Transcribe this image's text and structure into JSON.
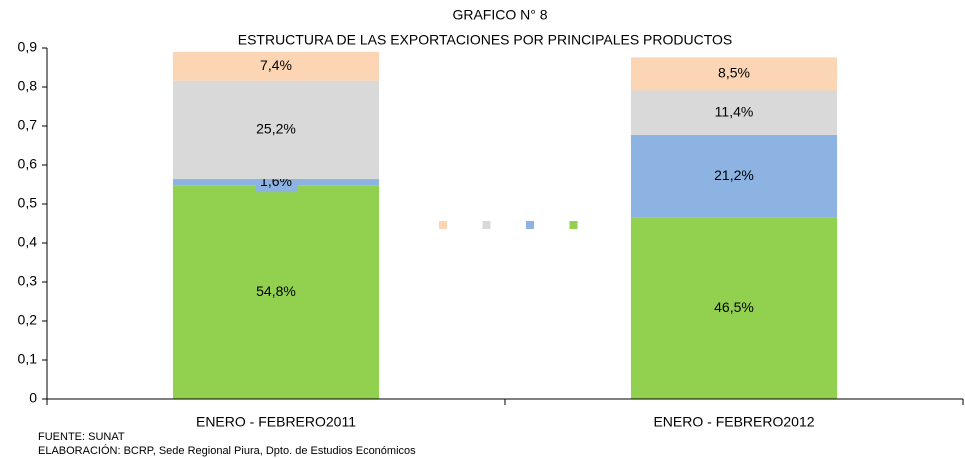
{
  "chart_data": {
    "type": "stacked-bar",
    "title": "GRAFICO N° 8",
    "subtitle": "ESTRUCTURA DE LAS EXPORTACIONES POR PRINCIPALES PRODUCTOS",
    "categories": [
      "ENERO - FEBRERO2011",
      "ENERO - FEBRERO2012"
    ],
    "series": [
      {
        "color": "#92d050",
        "values": [
          0.548,
          0.465
        ],
        "value_labels": [
          "54,8%",
          "46,5%"
        ]
      },
      {
        "color": "#8db3e2",
        "values": [
          0.016,
          0.212
        ],
        "value_labels": [
          "1,6%",
          "21,2%"
        ]
      },
      {
        "color": "#d9d9d9",
        "values": [
          0.252,
          0.114
        ],
        "value_labels": [
          "25,2%",
          "11,4%"
        ]
      },
      {
        "color": "#fcd5b4",
        "values": [
          0.074,
          0.085
        ],
        "value_labels": [
          "7,4%",
          "8,5%"
        ]
      }
    ],
    "ylim": [
      0,
      0.9
    ],
    "yticks": [
      0,
      {
        "value": 0.1,
        "label": "0,1"
      },
      {
        "value": 0.2,
        "label": "0,2"
      },
      {
        "value": 0.3,
        "label": "0,3"
      },
      {
        "value": 0.4,
        "label": "0,4"
      },
      {
        "value": 0.5,
        "label": "0,5"
      },
      {
        "value": 0.6,
        "label": "0,6"
      },
      {
        "value": 0.7,
        "label": "0,7"
      },
      {
        "value": 0.8,
        "label": "0,8"
      },
      {
        "value": 0.9,
        "label": "0,9"
      }
    ],
    "notes": [
      "FUENTE: SUNAT",
      "ELABORACIÓN: BCRP, Sede Regional Piura, Dpto. de Estudios Económicos"
    ]
  }
}
